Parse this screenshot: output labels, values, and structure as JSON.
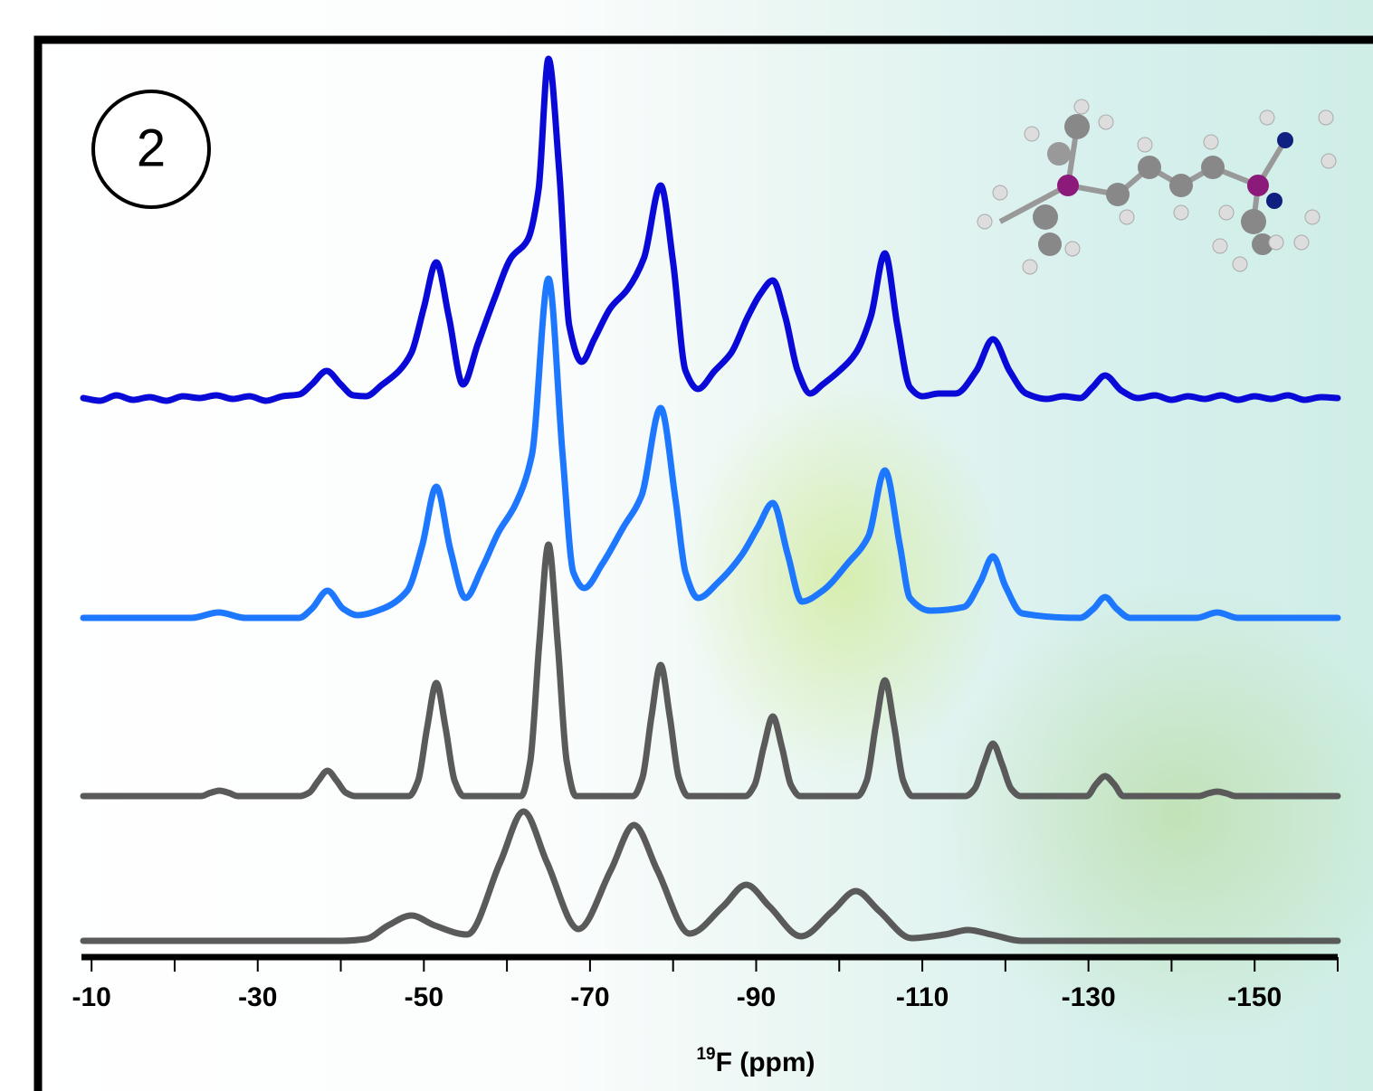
{
  "chart_data": {
    "type": "line",
    "annotation": "2",
    "xlabel_superscript": "19",
    "xlabel": "F (ppm)",
    "xlim": [
      -9,
      -160
    ],
    "xticks": [
      -10,
      -30,
      -50,
      -70,
      -90,
      -110,
      -130,
      -150
    ],
    "xminorticks": [
      -20,
      -40,
      -60,
      -80,
      -100,
      -120,
      -140,
      -160
    ],
    "series": [
      {
        "color": "#0a0ad8",
        "x": [
          -9,
          -11,
          -13,
          -15,
          -17,
          -19,
          -21,
          -23,
          -25,
          -27,
          -29,
          -31,
          -33,
          -35,
          -36.5,
          -38.3,
          -40,
          -41.5,
          -43,
          -45,
          -47,
          -48.5,
          -50,
          -51.5,
          -53,
          -54.7,
          -56.5,
          -58.5,
          -60.5,
          -62.5,
          -63.8,
          -65,
          -66.3,
          -67.5,
          -69,
          -70.5,
          -72.5,
          -74.5,
          -76.5,
          -78.5,
          -80,
          -81.5,
          -83,
          -85,
          -87,
          -89,
          -90.5,
          -92,
          -93.5,
          -95,
          -96.5,
          -98,
          -100,
          -102,
          -103.8,
          -105.5,
          -107,
          -108.5,
          -110,
          -112,
          -114,
          -116.5,
          -118.5,
          -120.5,
          -122.5,
          -125,
          -127,
          -129,
          -130.5,
          -132,
          -134,
          -136,
          -138,
          -140,
          -142,
          -144,
          -146,
          -148,
          -150,
          -152,
          -154,
          -156,
          -158,
          -160
        ],
        "values": [
          0,
          -3,
          3,
          -2,
          1,
          -3,
          2,
          0,
          3,
          -1,
          2,
          -3,
          2,
          4,
          15,
          30,
          15,
          3,
          2,
          15,
          30,
          50,
          100,
          150,
          90,
          15,
          60,
          110,
          155,
          175,
          230,
          375,
          250,
          80,
          40,
          65,
          100,
          120,
          155,
          235,
          150,
          30,
          10,
          30,
          50,
          90,
          115,
          130,
          90,
          30,
          5,
          15,
          30,
          50,
          90,
          160,
          80,
          12,
          2,
          5,
          5,
          30,
          65,
          30,
          5,
          -1,
          2,
          0,
          12,
          25,
          8,
          0,
          3,
          -2,
          2,
          -1,
          3,
          -2,
          2,
          -1,
          3,
          -2,
          1,
          0
        ]
      },
      {
        "color": "#1e78ff",
        "x": [
          -9,
          -22,
          -25.3,
          -28.5,
          -35,
          -36.5,
          -38.4,
          -40.3,
          -42,
          -45,
          -48,
          -49.8,
          -51.5,
          -53.2,
          -55,
          -57,
          -59,
          -61,
          -63,
          -65,
          -66.7,
          -68,
          -69.3,
          -71.5,
          -74,
          -76.2,
          -78.5,
          -80.3,
          -81.5,
          -83,
          -85.5,
          -88.3,
          -90.2,
          -92,
          -93.8,
          -95.5,
          -98,
          -101,
          -103.5,
          -105.5,
          -107.3,
          -108.5,
          -111,
          -115,
          -117,
          -118.5,
          -120,
          -122,
          -129,
          -130.6,
          -132,
          -133.4,
          -135,
          -143,
          -145.5,
          -148,
          -160
        ],
        "values": [
          0,
          0,
          6,
          0,
          0,
          10,
          30,
          10,
          3,
          10,
          30,
          80,
          145,
          75,
          22,
          55,
          95,
          125,
          180,
          375,
          180,
          50,
          33,
          60,
          100,
          135,
          232,
          130,
          50,
          22,
          40,
          70,
          100,
          127,
          70,
          18,
          30,
          60,
          90,
          163,
          80,
          22,
          8,
          12,
          40,
          68,
          35,
          5,
          0,
          10,
          23,
          10,
          0,
          0,
          6,
          0,
          0
        ]
      },
      {
        "color": "#5a5a5a",
        "x": [
          -9,
          -23.2,
          -24.3,
          -25.4,
          -26.5,
          -27.6,
          -35.1,
          -36.2,
          -37.3,
          -38.4,
          -39.5,
          -40.6,
          -41.7,
          -48.2,
          -49.3,
          -50.4,
          -51.5,
          -52.6,
          -53.7,
          -54.8,
          -61.7,
          -62.8,
          -63.9,
          -65,
          -66.1,
          -67.2,
          -68.3,
          -75.2,
          -76.3,
          -77.4,
          -78.5,
          -79.6,
          -80.7,
          -81.8,
          -88.7,
          -89.8,
          -90.9,
          -92,
          -93.1,
          -94.2,
          -95.3,
          -102.2,
          -103.3,
          -104.4,
          -105.5,
          -106.6,
          -107.7,
          -108.8,
          -115.2,
          -116.3,
          -117.4,
          -118.5,
          -119.6,
          -120.7,
          -121.8,
          -129.8,
          -130.9,
          -132,
          -133.1,
          -134.2,
          -143.3,
          -144.4,
          -145.5,
          -146.6,
          -147.7,
          -160
        ],
        "values": [
          0,
          0,
          3.6,
          6,
          3.6,
          0,
          0,
          3.8,
          17,
          28,
          17,
          3.8,
          0,
          0,
          17,
          76,
          125,
          76,
          17,
          0,
          0,
          38,
          170,
          278,
          170,
          38,
          0,
          0,
          20,
          88,
          145,
          88,
          20,
          0,
          0,
          12,
          54,
          88,
          54,
          12,
          0,
          0,
          17,
          78,
          128,
          78,
          17,
          0,
          0,
          8,
          35,
          58,
          35,
          8,
          0,
          0,
          13,
          22,
          13,
          0,
          0,
          3,
          5,
          3,
          0,
          0
        ]
      },
      {
        "color": "#5a5a5a",
        "x": [
          -9,
          -40,
          -43,
          -45.7,
          -48.5,
          -51.3,
          -55.2,
          -59.2,
          -62,
          -64.8,
          -68.6,
          -72.5,
          -75.3,
          -78.1,
          -82,
          -86,
          -88.8,
          -91.6,
          -95.4,
          -99.2,
          -102,
          -104.8,
          -108.7,
          -112.7,
          -115.5,
          -118.3,
          -122,
          -160
        ],
        "values": [
          0,
          0,
          2,
          17,
          28,
          17,
          7,
          87,
          143,
          87,
          13,
          78,
          128,
          78,
          8,
          38,
          62,
          38,
          5,
          33,
          55,
          33,
          3,
          7,
          12,
          7,
          0,
          0
        ]
      }
    ]
  }
}
